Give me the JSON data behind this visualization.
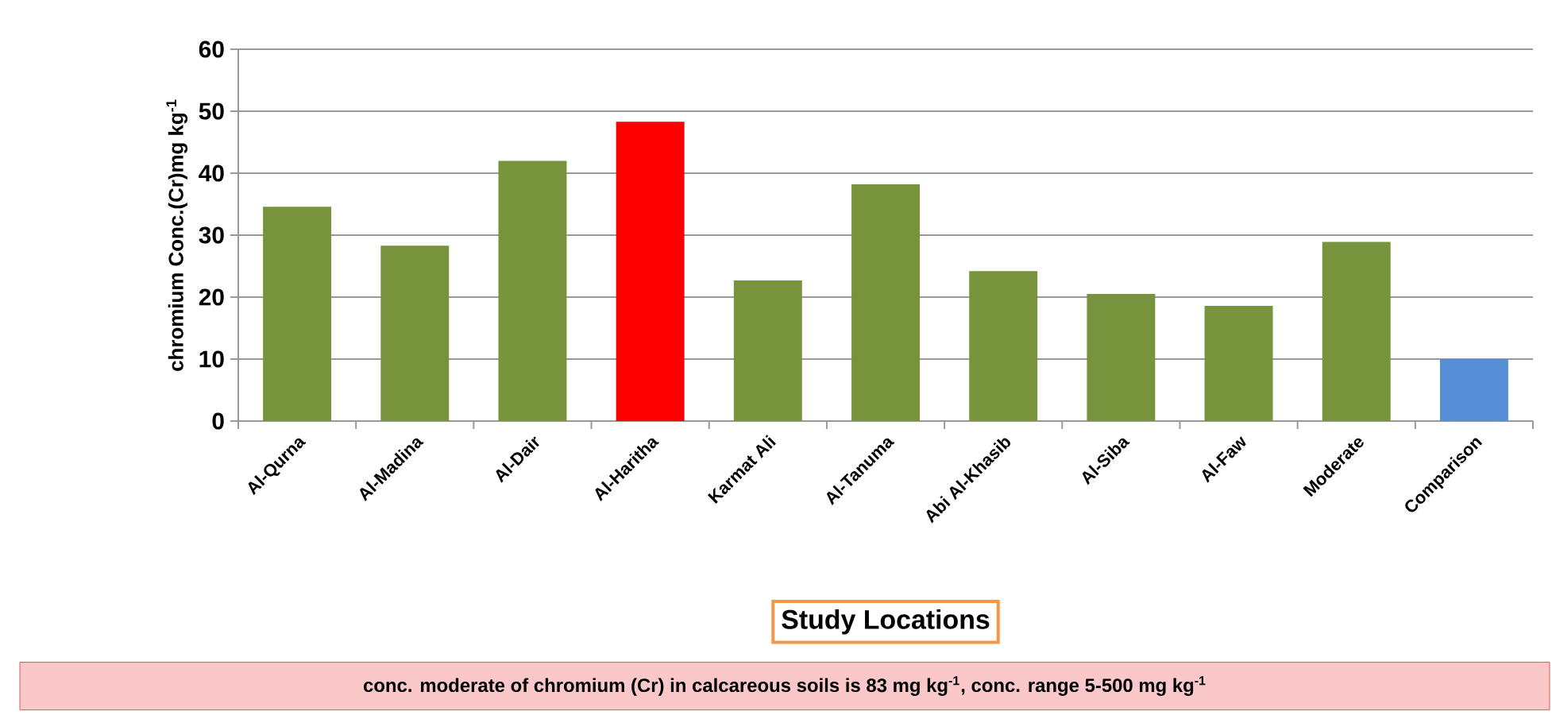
{
  "chart_data": {
    "type": "bar",
    "ylabel": "chromium Conc.(Cr)mg kg$^{-1}$",
    "xlabel": "Study Locations",
    "categories": [
      "Al-Qurna",
      "Al-Madina",
      "Al-Dair",
      "Al-Haritha",
      "Karmat Ali",
      "Al-Tanuma",
      "Abi Al-Khasib",
      "Al-Siba",
      "Al-Faw",
      "Moderate",
      "Comparison"
    ],
    "values": [
      34.6,
      28.3,
      42.0,
      48.3,
      22.7,
      38.2,
      24.2,
      20.5,
      18.6,
      28.9,
      10.0
    ],
    "colors": [
      "#77933c",
      "#77933c",
      "#77933c",
      "#ff0000",
      "#77933c",
      "#77933c",
      "#77933c",
      "#77933c",
      "#77933c",
      "#77933c",
      "#558ed5"
    ],
    "ylim": [
      0,
      60
    ],
    "yticks": [
      0,
      10,
      20,
      30,
      40,
      50,
      60
    ],
    "grid": "y",
    "annotations": [
      "conc. moderate of chromium (Cr) in calcareous soils is 83 mg kg$^{-1}$, conc. range 5-500 mg kg$^{-1}$"
    ]
  }
}
